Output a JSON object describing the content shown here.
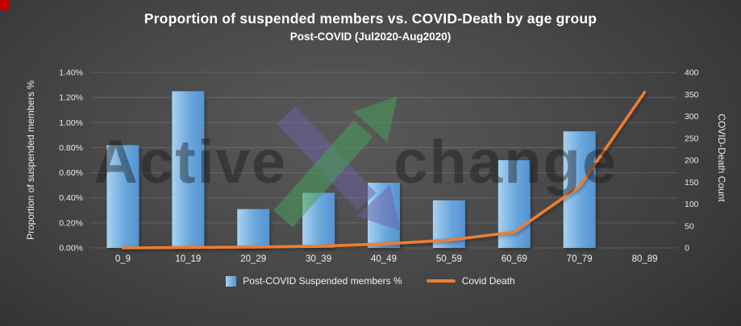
{
  "header": {
    "title": "Proportion of suspended members vs. COVID-Death by age group",
    "subtitle": "Post-COVID (Jul2020-Aug2020)"
  },
  "chart_data": {
    "type": "combo",
    "categories": [
      "0_9",
      "10_19",
      "20_29",
      "30_39",
      "40_49",
      "50_59",
      "60_69",
      "70_79",
      "80_89"
    ],
    "series": [
      {
        "name": "Post-COVID Suspended members %",
        "type": "bar",
        "axis": "left",
        "values": [
          0.82,
          1.25,
          0.31,
          0.44,
          0.52,
          0.38,
          0.7,
          0.93,
          0
        ]
      },
      {
        "name": "Covid Death",
        "type": "line",
        "axis": "right",
        "values": [
          0,
          1,
          2,
          4,
          9,
          18,
          36,
          140,
          355
        ]
      }
    ],
    "left_axis": {
      "label": "Proportion of suspended members %",
      "min": 0,
      "max": 1.4,
      "step": 0.2,
      "ticks": [
        "0.00%",
        "0.20%",
        "0.40%",
        "0.60%",
        "0.80%",
        "1.00%",
        "1.20%",
        "1.40%"
      ]
    },
    "right_axis": {
      "label": "COVID-Death Count",
      "min": 0,
      "max": 400,
      "step": 50,
      "ticks": [
        "0",
        "50",
        "100",
        "150",
        "200",
        "250",
        "300",
        "350",
        "400"
      ]
    },
    "legend_position": "bottom",
    "grid": true
  },
  "watermark": {
    "left": "Active",
    "right": "change"
  },
  "colors": {
    "bar_light": "#a9d2f1",
    "bar_dark": "#5593d0",
    "line": "#ed7d31",
    "grid": "rgba(255,255,255,0.14)",
    "title_text": "#ffffff",
    "tick_text": "#e9e9e9",
    "watermark_green": "rgba(72,160,90,0.55)",
    "watermark_purple": "rgba(108,96,164,0.50)"
  }
}
